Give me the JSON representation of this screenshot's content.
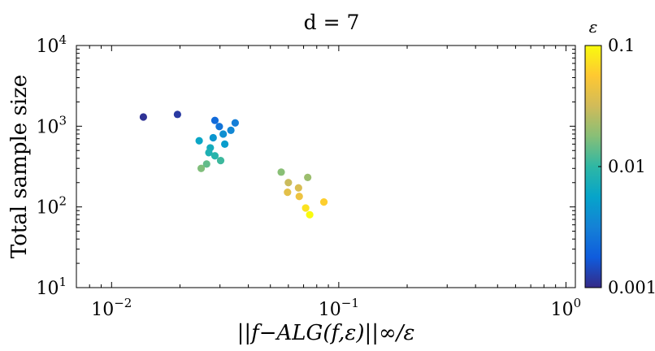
{
  "chart_data": {
    "type": "scatter",
    "title": "d = 7",
    "xlabel": "||f−ALG(f,ε)||∞/ε",
    "ylabel": "Total sample size",
    "xscale": "log",
    "yscale": "log",
    "xlim": [
      0.007,
      1.1
    ],
    "ylim": [
      10,
      10000
    ],
    "grid": false,
    "x_ticks": [
      {
        "value": 0.01,
        "base": "10",
        "exp": "−2"
      },
      {
        "value": 0.1,
        "base": "10",
        "exp": "−1"
      },
      {
        "value": 1,
        "base": "10",
        "exp": "0"
      }
    ],
    "y_ticks": [
      {
        "value": 10,
        "base": "10",
        "exp": "1"
      },
      {
        "value": 100,
        "base": "10",
        "exp": "2"
      },
      {
        "value": 1000,
        "base": "10",
        "exp": "3"
      },
      {
        "value": 10000,
        "base": "10",
        "exp": "4"
      }
    ],
    "colorbar": {
      "label": "ε",
      "scale": "log",
      "range": [
        0.001,
        0.1
      ],
      "tick_labels": [
        "0.1",
        "0.01",
        "0.001"
      ],
      "tick_values": [
        0.1,
        0.01,
        0.001
      ],
      "colormap": [
        "#352a87",
        "#0f5cdd",
        "#1481d6",
        "#06a4ca",
        "#2eb7a4",
        "#87bf77",
        "#d1bb59",
        "#fec832",
        "#f9fb0e"
      ]
    },
    "points": [
      {
        "x": 0.0138,
        "y": 1300,
        "c": 0.0011
      },
      {
        "x": 0.0195,
        "y": 1400,
        "c": 0.0012
      },
      {
        "x": 0.0285,
        "y": 1180,
        "c": 0.0022
      },
      {
        "x": 0.0298,
        "y": 990,
        "c": 0.0026
      },
      {
        "x": 0.035,
        "y": 1100,
        "c": 0.003
      },
      {
        "x": 0.0335,
        "y": 890,
        "c": 0.0035
      },
      {
        "x": 0.031,
        "y": 800,
        "c": 0.004
      },
      {
        "x": 0.028,
        "y": 720,
        "c": 0.0045
      },
      {
        "x": 0.0315,
        "y": 600,
        "c": 0.005
      },
      {
        "x": 0.0243,
        "y": 660,
        "c": 0.006
      },
      {
        "x": 0.0272,
        "y": 540,
        "c": 0.007
      },
      {
        "x": 0.0268,
        "y": 470,
        "c": 0.008
      },
      {
        "x": 0.0285,
        "y": 430,
        "c": 0.009
      },
      {
        "x": 0.0302,
        "y": 375,
        "c": 0.011
      },
      {
        "x": 0.0262,
        "y": 340,
        "c": 0.014
      },
      {
        "x": 0.0248,
        "y": 300,
        "c": 0.017
      },
      {
        "x": 0.0558,
        "y": 270,
        "c": 0.018
      },
      {
        "x": 0.073,
        "y": 232,
        "c": 0.021
      },
      {
        "x": 0.06,
        "y": 200,
        "c": 0.03
      },
      {
        "x": 0.0665,
        "y": 172,
        "c": 0.035
      },
      {
        "x": 0.0595,
        "y": 152,
        "c": 0.04
      },
      {
        "x": 0.067,
        "y": 135,
        "c": 0.045
      },
      {
        "x": 0.086,
        "y": 115,
        "c": 0.06
      },
      {
        "x": 0.0715,
        "y": 97,
        "c": 0.075
      },
      {
        "x": 0.0745,
        "y": 80,
        "c": 0.1
      }
    ]
  }
}
